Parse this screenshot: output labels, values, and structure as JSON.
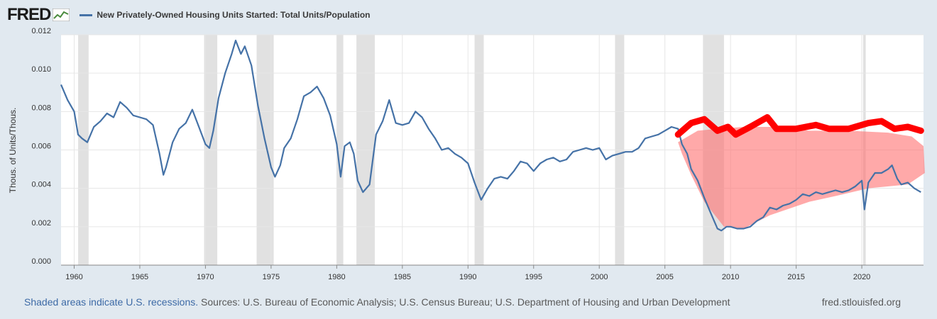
{
  "header": {
    "logo_text": "FRED",
    "legend_label": "New Privately-Owned Housing Units Started: Total Units/Population"
  },
  "footer": {
    "recessions_note": "Shaded areas indicate U.S. recessions.",
    "sources": "Sources: U.S. Bureau of Economic Analysis; U.S. Census Bureau; U.S. Department of Housing and Urban Development",
    "site": "fred.stlouisfed.org"
  },
  "colors": {
    "series": "#4572a7",
    "recession": "#e1e1e1",
    "annotation_line": "#ff0000",
    "annotation_fill": "#ff6f6f"
  },
  "chart_data": {
    "type": "line",
    "title": "",
    "xlabel": "",
    "ylabel": "Thous. of Units/Thous.",
    "xlim": [
      1959,
      2024.7
    ],
    "ylim": [
      0,
      0.012
    ],
    "x_ticks": [
      "1960",
      "1965",
      "1970",
      "1975",
      "1980",
      "1985",
      "1990",
      "1995",
      "2000",
      "2005",
      "2010",
      "2015",
      "2020"
    ],
    "y_ticks": [
      "0.000",
      "0.002",
      "0.004",
      "0.006",
      "0.008",
      "0.010",
      "0.012"
    ],
    "grid": true,
    "recessions": [
      [
        1960.3,
        1961.1
      ],
      [
        1969.9,
        1970.9
      ],
      [
        1973.9,
        1975.2
      ],
      [
        1980.0,
        1980.5
      ],
      [
        1981.5,
        1982.9
      ],
      [
        1990.5,
        1991.2
      ],
      [
        2001.2,
        2001.9
      ],
      [
        2007.9,
        2009.5
      ],
      [
        2020.1,
        2020.3
      ]
    ],
    "series": [
      {
        "name": "New Privately-Owned Housing Units Started: Total Units/Population",
        "points": [
          [
            1959.0,
            0.0094
          ],
          [
            1959.5,
            0.0086
          ],
          [
            1960.0,
            0.008
          ],
          [
            1960.3,
            0.0068
          ],
          [
            1960.6,
            0.0066
          ],
          [
            1961.0,
            0.0064
          ],
          [
            1961.5,
            0.0072
          ],
          [
            1962.0,
            0.0075
          ],
          [
            1962.5,
            0.0079
          ],
          [
            1963.0,
            0.0077
          ],
          [
            1963.5,
            0.0085
          ],
          [
            1964.0,
            0.0082
          ],
          [
            1964.5,
            0.0078
          ],
          [
            1965.0,
            0.0077
          ],
          [
            1965.5,
            0.0076
          ],
          [
            1966.0,
            0.0073
          ],
          [
            1966.5,
            0.0058
          ],
          [
            1966.8,
            0.0047
          ],
          [
            1967.0,
            0.0051
          ],
          [
            1967.5,
            0.0064
          ],
          [
            1968.0,
            0.0071
          ],
          [
            1968.5,
            0.0074
          ],
          [
            1969.0,
            0.0081
          ],
          [
            1969.5,
            0.0072
          ],
          [
            1970.0,
            0.0063
          ],
          [
            1970.3,
            0.0061
          ],
          [
            1970.6,
            0.007
          ],
          [
            1971.0,
            0.0087
          ],
          [
            1971.5,
            0.01
          ],
          [
            1972.0,
            0.011
          ],
          [
            1972.3,
            0.0117
          ],
          [
            1972.7,
            0.011
          ],
          [
            1973.0,
            0.0114
          ],
          [
            1973.5,
            0.0104
          ],
          [
            1974.0,
            0.0083
          ],
          [
            1974.5,
            0.0066
          ],
          [
            1975.0,
            0.0051
          ],
          [
            1975.3,
            0.0046
          ],
          [
            1975.7,
            0.0052
          ],
          [
            1976.0,
            0.0061
          ],
          [
            1976.5,
            0.0066
          ],
          [
            1977.0,
            0.0076
          ],
          [
            1977.5,
            0.0088
          ],
          [
            1978.0,
            0.009
          ],
          [
            1978.5,
            0.0093
          ],
          [
            1979.0,
            0.0087
          ],
          [
            1979.5,
            0.0078
          ],
          [
            1980.0,
            0.0063
          ],
          [
            1980.3,
            0.0046
          ],
          [
            1980.6,
            0.0062
          ],
          [
            1981.0,
            0.0064
          ],
          [
            1981.3,
            0.0058
          ],
          [
            1981.6,
            0.0044
          ],
          [
            1982.0,
            0.0038
          ],
          [
            1982.5,
            0.0042
          ],
          [
            1983.0,
            0.0068
          ],
          [
            1983.5,
            0.0075
          ],
          [
            1984.0,
            0.0086
          ],
          [
            1984.5,
            0.0074
          ],
          [
            1985.0,
            0.0073
          ],
          [
            1985.5,
            0.0074
          ],
          [
            1986.0,
            0.008
          ],
          [
            1986.5,
            0.0077
          ],
          [
            1987.0,
            0.0071
          ],
          [
            1987.5,
            0.0066
          ],
          [
            1988.0,
            0.006
          ],
          [
            1988.5,
            0.0061
          ],
          [
            1989.0,
            0.0058
          ],
          [
            1989.5,
            0.0056
          ],
          [
            1990.0,
            0.0053
          ],
          [
            1990.5,
            0.0043
          ],
          [
            1991.0,
            0.0034
          ],
          [
            1991.5,
            0.004
          ],
          [
            1992.0,
            0.0045
          ],
          [
            1992.5,
            0.0046
          ],
          [
            1993.0,
            0.0045
          ],
          [
            1993.5,
            0.0049
          ],
          [
            1994.0,
            0.0054
          ],
          [
            1994.5,
            0.0053
          ],
          [
            1995.0,
            0.0049
          ],
          [
            1995.5,
            0.0053
          ],
          [
            1996.0,
            0.0055
          ],
          [
            1996.5,
            0.0056
          ],
          [
            1997.0,
            0.0054
          ],
          [
            1997.5,
            0.0055
          ],
          [
            1998.0,
            0.0059
          ],
          [
            1998.5,
            0.006
          ],
          [
            1999.0,
            0.0061
          ],
          [
            1999.5,
            0.006
          ],
          [
            2000.0,
            0.0061
          ],
          [
            2000.5,
            0.0055
          ],
          [
            2001.0,
            0.0057
          ],
          [
            2001.5,
            0.0058
          ],
          [
            2002.0,
            0.0059
          ],
          [
            2002.5,
            0.0059
          ],
          [
            2003.0,
            0.0061
          ],
          [
            2003.5,
            0.0066
          ],
          [
            2004.0,
            0.0067
          ],
          [
            2004.5,
            0.0068
          ],
          [
            2005.0,
            0.007
          ],
          [
            2005.5,
            0.0072
          ],
          [
            2006.0,
            0.0071
          ],
          [
            2006.3,
            0.0063
          ],
          [
            2006.7,
            0.0058
          ],
          [
            2007.0,
            0.005
          ],
          [
            2007.5,
            0.0044
          ],
          [
            2008.0,
            0.0035
          ],
          [
            2008.5,
            0.0027
          ],
          [
            2009.0,
            0.0019
          ],
          [
            2009.3,
            0.0018
          ],
          [
            2009.7,
            0.002
          ],
          [
            2010.0,
            0.002
          ],
          [
            2010.5,
            0.0019
          ],
          [
            2011.0,
            0.0019
          ],
          [
            2011.5,
            0.002
          ],
          [
            2012.0,
            0.0023
          ],
          [
            2012.5,
            0.0025
          ],
          [
            2013.0,
            0.003
          ],
          [
            2013.5,
            0.0029
          ],
          [
            2014.0,
            0.0031
          ],
          [
            2014.5,
            0.0032
          ],
          [
            2015.0,
            0.0034
          ],
          [
            2015.5,
            0.0037
          ],
          [
            2016.0,
            0.0036
          ],
          [
            2016.5,
            0.0038
          ],
          [
            2017.0,
            0.0037
          ],
          [
            2017.5,
            0.0038
          ],
          [
            2018.0,
            0.0039
          ],
          [
            2018.5,
            0.0038
          ],
          [
            2019.0,
            0.0039
          ],
          [
            2019.5,
            0.0041
          ],
          [
            2020.0,
            0.0044
          ],
          [
            2020.2,
            0.0029
          ],
          [
            2020.5,
            0.0043
          ],
          [
            2021.0,
            0.0048
          ],
          [
            2021.5,
            0.0048
          ],
          [
            2022.0,
            0.005
          ],
          [
            2022.3,
            0.0052
          ],
          [
            2022.7,
            0.0045
          ],
          [
            2023.0,
            0.0042
          ],
          [
            2023.5,
            0.0043
          ],
          [
            2024.0,
            0.004
          ],
          [
            2024.5,
            0.0038
          ]
        ]
      }
    ],
    "annotations": {
      "red_line": [
        [
          2006.0,
          0.0068
        ],
        [
          2007.0,
          0.0074
        ],
        [
          2008.0,
          0.0076
        ],
        [
          2009.0,
          0.007
        ],
        [
          2009.8,
          0.0072
        ],
        [
          2010.4,
          0.0068
        ],
        [
          2011.5,
          0.0072
        ],
        [
          2012.8,
          0.0077
        ],
        [
          2013.5,
          0.0071
        ],
        [
          2015.0,
          0.0071
        ],
        [
          2016.5,
          0.0073
        ],
        [
          2017.5,
          0.0071
        ],
        [
          2019.0,
          0.0071
        ],
        [
          2020.5,
          0.0074
        ],
        [
          2021.5,
          0.0075
        ],
        [
          2022.5,
          0.0071
        ],
        [
          2023.5,
          0.0072
        ],
        [
          2024.5,
          0.007
        ]
      ],
      "red_blob": [
        [
          2006.0,
          0.0064
        ],
        [
          2007.5,
          0.007
        ],
        [
          2009.0,
          0.0071
        ],
        [
          2011.0,
          0.0072
        ],
        [
          2013.0,
          0.0072
        ],
        [
          2016.0,
          0.007
        ],
        [
          2019.0,
          0.007
        ],
        [
          2022.0,
          0.0069
        ],
        [
          2023.8,
          0.0067
        ],
        [
          2024.7,
          0.0062
        ],
        [
          2024.8,
          0.0048
        ],
        [
          2023.5,
          0.0042
        ],
        [
          2020.5,
          0.004
        ],
        [
          2018.0,
          0.0036
        ],
        [
          2016.0,
          0.0033
        ],
        [
          2013.0,
          0.0026
        ],
        [
          2011.0,
          0.0019
        ],
        [
          2009.5,
          0.002
        ],
        [
          2008.0,
          0.0033
        ],
        [
          2007.0,
          0.0047
        ],
        [
          2006.3,
          0.0058
        ]
      ]
    }
  }
}
